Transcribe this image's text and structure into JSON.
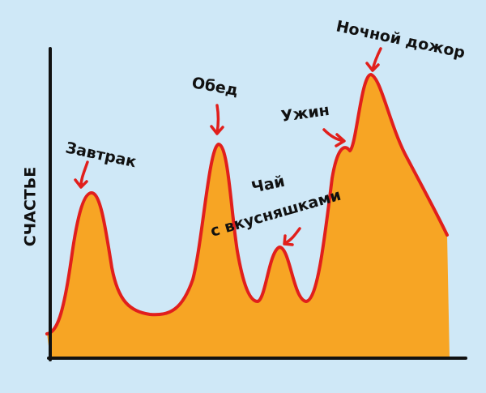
{
  "axis": {
    "y_label": "СЧАСТЬЕ"
  },
  "annotations": [
    {
      "text": "Завтрак"
    },
    {
      "text": "Обед"
    },
    {
      "text": "Чай"
    },
    {
      "text": "с вкусняшками"
    },
    {
      "text": "Ужин"
    },
    {
      "text": "Ночной дожор"
    }
  ]
}
